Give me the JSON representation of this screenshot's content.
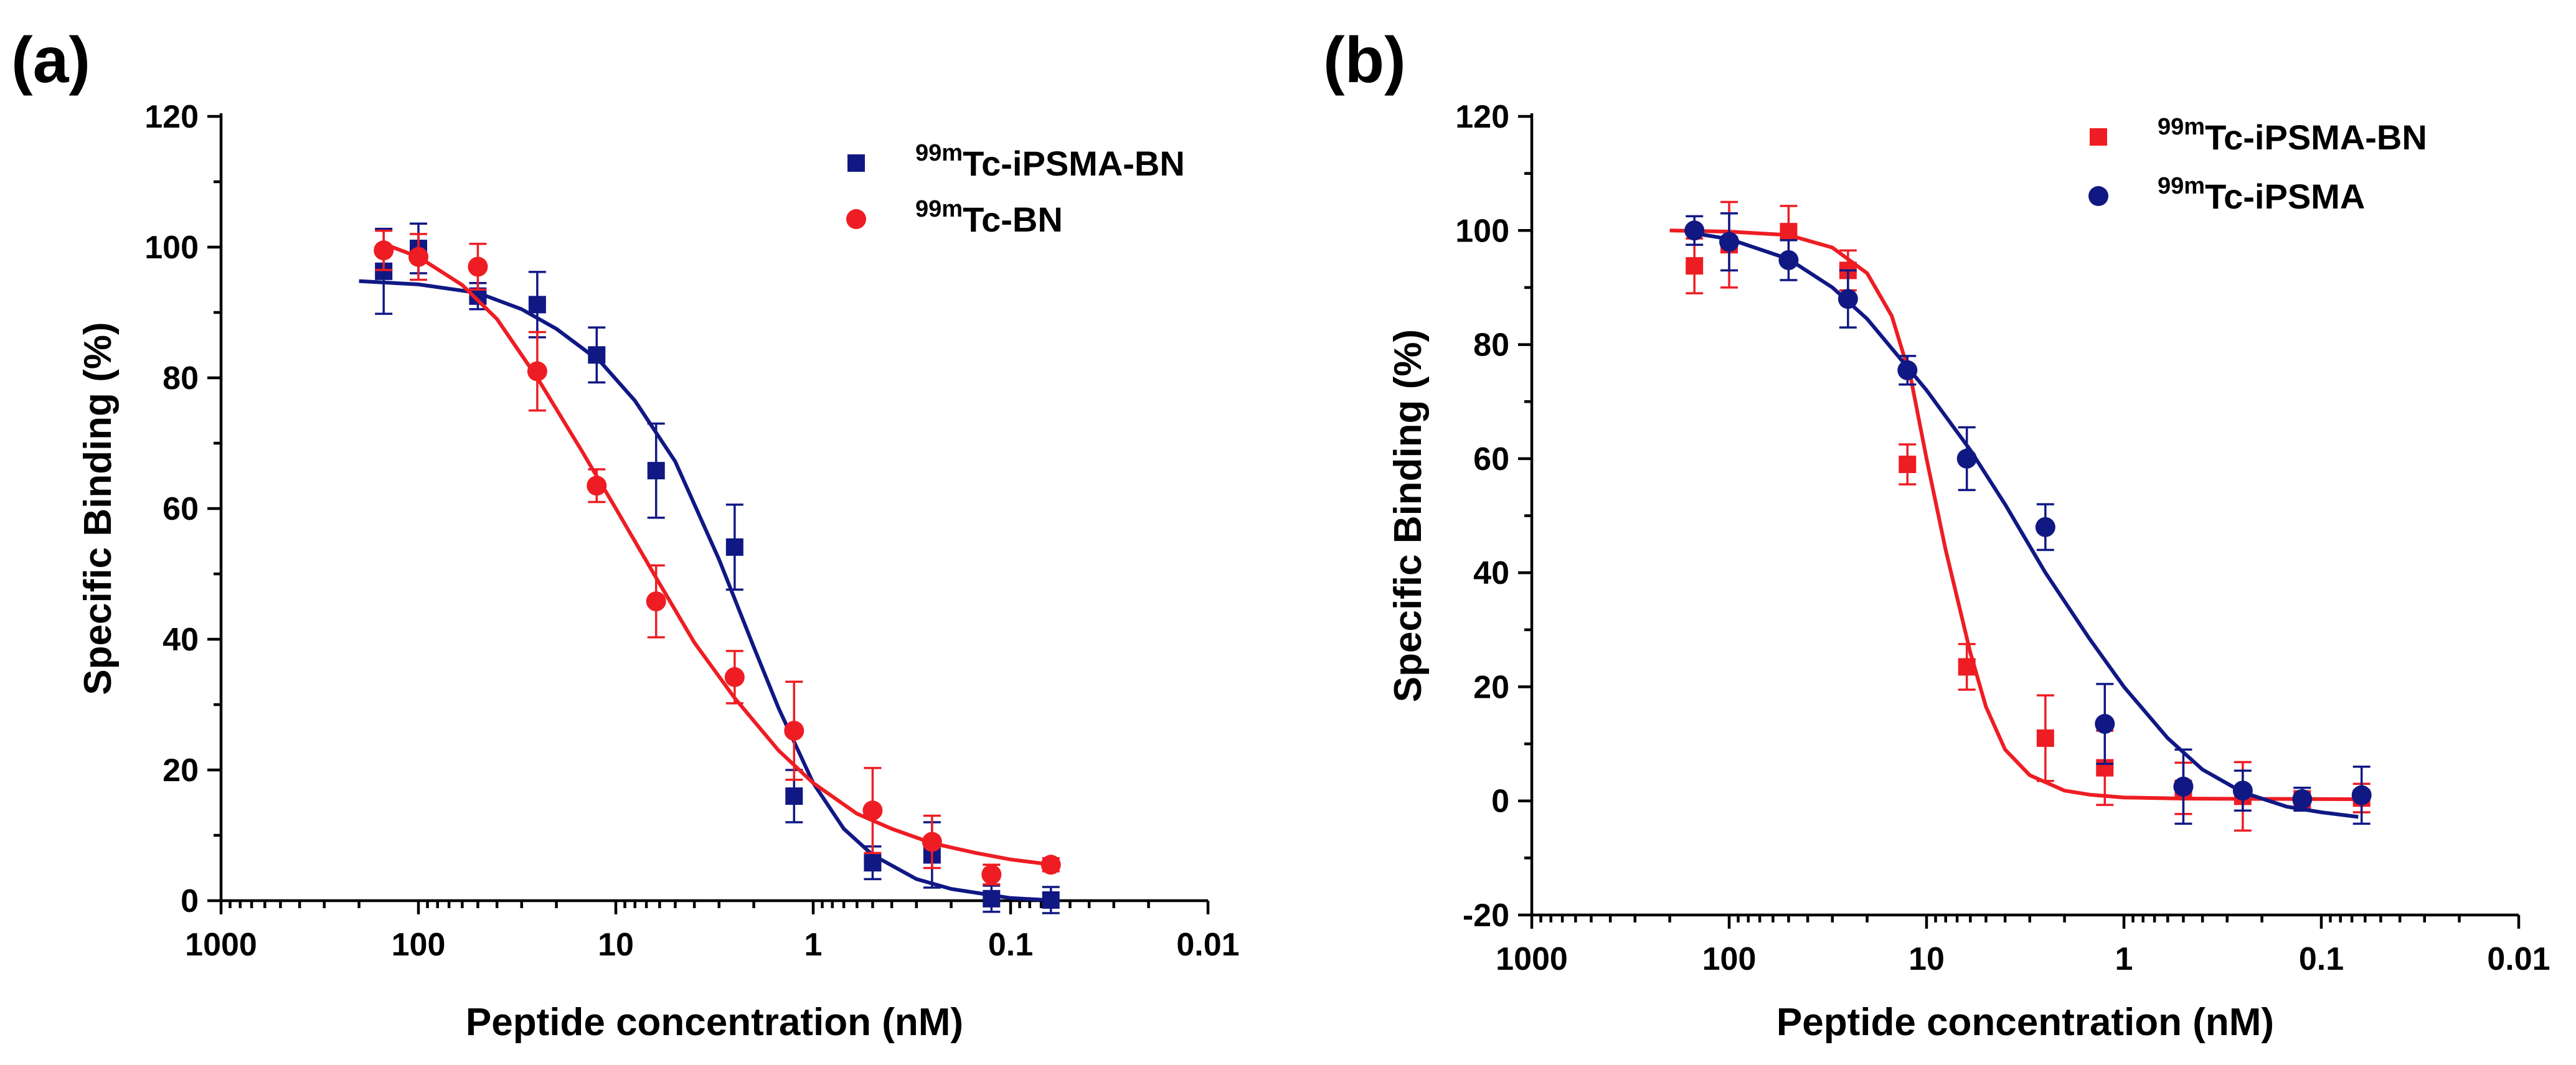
{
  "chart_data": [
    {
      "type": "scatter",
      "panel_label": "(a)",
      "xlabel": "Peptide concentration (nM)",
      "ylabel": "Specific Binding (%)",
      "x_scale": "log",
      "x_reversed": true,
      "xlim": [
        1000,
        0.01
      ],
      "x_ticks": [
        1000,
        100,
        10,
        1,
        0.1,
        0.01
      ],
      "x_tick_labels": [
        "1000",
        "100",
        "10",
        "1",
        "0.1",
        "0.01"
      ],
      "ylim": [
        0,
        120
      ],
      "y_ticks": [
        0,
        20,
        40,
        60,
        80,
        100,
        120
      ],
      "y_tick_labels": [
        "0",
        "20",
        "40",
        "60",
        "80",
        "100",
        "120"
      ],
      "legend_position": "top-right",
      "series": [
        {
          "name": "Tc-iPSMA-BN",
          "name_superscript": "99m",
          "color": "#101884",
          "marker": "square",
          "x": [
            150,
            100,
            50,
            25,
            12.5,
            6.25,
            2.5,
            1.25,
            0.5,
            0.25,
            0.125,
            0.0625
          ],
          "y": [
            96.3,
            99.8,
            92.5,
            91.2,
            83.5,
            65.8,
            54.1,
            16.0,
            5.8,
            7.0,
            0.3,
            0.1
          ],
          "err": [
            6.5,
            3.8,
            2.0,
            5.0,
            4.2,
            7.2,
            6.5,
            4.0,
            2.5,
            5.0,
            2.0,
            2.0
          ],
          "fit_x": [
            200,
            100,
            50,
            30,
            20,
            12,
            8,
            5,
            3,
            2,
            1.5,
            1,
            0.7,
            0.5,
            0.3,
            0.2,
            0.1,
            0.065
          ],
          "fit_y": [
            94.8,
            94.3,
            93.0,
            90.5,
            87.5,
            82.5,
            76.5,
            67.2,
            52.2,
            38.8,
            29.5,
            18.0,
            11.0,
            7.0,
            3.3,
            1.8,
            0.4,
            0.1
          ]
        },
        {
          "name": "Tc-BN",
          "name_superscript": "99m",
          "color": "#ee1d23",
          "marker": "circle",
          "x": [
            150,
            100,
            50,
            25,
            12.5,
            6.25,
            2.5,
            1.25,
            0.5,
            0.25,
            0.125,
            0.0625
          ],
          "y": [
            99.5,
            98.5,
            97.0,
            81.0,
            63.5,
            45.8,
            34.2,
            26.0,
            13.8,
            9.0,
            4.0,
            5.5
          ],
          "err": [
            3.0,
            3.5,
            3.5,
            6.0,
            2.5,
            5.5,
            4.0,
            7.5,
            6.5,
            4.0,
            1.5,
            1.0
          ],
          "fit_x": [
            150,
            100,
            60,
            40,
            25,
            15,
            10,
            6,
            4,
            2.5,
            1.5,
            1,
            0.6,
            0.4,
            0.25,
            0.15,
            0.1,
            0.065
          ],
          "fit_y": [
            100.5,
            98.5,
            94.2,
            89.0,
            80.0,
            69.0,
            60.0,
            48.5,
            39.5,
            31.0,
            23.0,
            18.0,
            13.3,
            11.0,
            8.8,
            7.3,
            6.3,
            5.6
          ]
        }
      ]
    },
    {
      "type": "scatter",
      "panel_label": "(b)",
      "xlabel": "Peptide concentration (nM)",
      "ylabel": "Specific Binding (%)",
      "x_scale": "log",
      "x_reversed": true,
      "xlim": [
        1000,
        0.01
      ],
      "x_ticks": [
        1000,
        100,
        10,
        1,
        0.1,
        0.01
      ],
      "x_tick_labels": [
        "1000",
        "100",
        "10",
        "1",
        "0.1",
        "0.01"
      ],
      "ylim": [
        -20,
        120
      ],
      "y_ticks": [
        -20,
        0,
        20,
        40,
        60,
        80,
        100,
        120
      ],
      "y_tick_labels": [
        "-20",
        "0",
        "20",
        "40",
        "60",
        "80",
        "100",
        "120"
      ],
      "legend_position": "top-right",
      "series": [
        {
          "name": "Tc-iPSMA-BN",
          "name_superscript": "99m",
          "color": "#ee1d23",
          "marker": "square",
          "x": [
            150,
            100,
            50,
            25,
            12.5,
            6.25,
            2.5,
            1.25,
            0.5,
            0.25,
            0.125,
            0.0625
          ],
          "y": [
            93.8,
            97.5,
            99.8,
            93.0,
            59.0,
            23.5,
            11.0,
            5.8,
            2.2,
            0.8,
            0.2,
            0.5
          ],
          "err": [
            4.8,
            7.5,
            4.5,
            3.5,
            3.5,
            4.0,
            7.5,
            6.5,
            4.5,
            6.0,
            1.5,
            2.5
          ],
          "fit_x": [
            200,
            100,
            50,
            30,
            20,
            15,
            12,
            10,
            8,
            6,
            5,
            4,
            3,
            2,
            1.5,
            1,
            0.5,
            0.2,
            0.065
          ],
          "fit_y": [
            100,
            99.8,
            99.2,
            97.0,
            92.5,
            85.0,
            74.0,
            60.0,
            44.0,
            26.0,
            16.5,
            9.0,
            4.5,
            1.8,
            1.1,
            0.6,
            0.4,
            0.35,
            0.3
          ]
        },
        {
          "name": "Tc-iPSMA",
          "name_superscript": "99m",
          "color": "#101884",
          "marker": "circle",
          "x": [
            150,
            100,
            50,
            25,
            12.5,
            6.25,
            2.5,
            1.25,
            0.5,
            0.25,
            0.125,
            0.0625
          ],
          "y": [
            100.0,
            98.0,
            94.8,
            88.0,
            75.5,
            60.0,
            48.0,
            13.5,
            2.5,
            1.8,
            0.3,
            1.0
          ],
          "err": [
            2.5,
            5.0,
            3.5,
            5.0,
            2.5,
            5.5,
            4.0,
            7.0,
            6.5,
            3.5,
            2.0,
            5.0
          ],
          "fit_x": [
            150,
            100,
            50,
            30,
            20,
            10,
            6,
            4,
            2.5,
            1.5,
            1,
            0.6,
            0.4,
            0.25,
            0.15,
            0.1,
            0.065
          ],
          "fit_y": [
            99.5,
            98.5,
            95.0,
            90.0,
            84.5,
            72.0,
            61.5,
            52.0,
            40.0,
            28.5,
            20.0,
            11.0,
            5.5,
            1.5,
            -1.0,
            -2.0,
            -2.8
          ]
        }
      ]
    }
  ]
}
